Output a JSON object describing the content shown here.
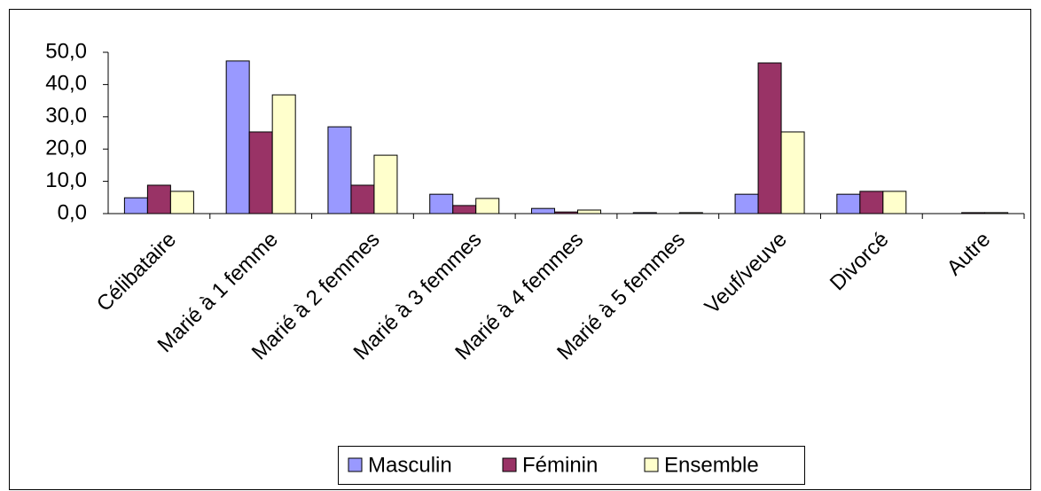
{
  "chart_data": {
    "type": "bar",
    "categories": [
      "Célibataire",
      "Marié à 1 femme",
      "Marié à 2 femmes",
      "Marié à 3 femmes",
      "Marié à 4 femmes",
      "Marié à 5 femmes",
      "Veuf/veuve",
      "Divorcé",
      "Autre"
    ],
    "series": [
      {
        "name": "Masculin",
        "color": "#9999ff",
        "values": [
          4.9,
          47.3,
          26.9,
          6.0,
          1.6,
          0.3,
          6.0,
          6.0,
          0
        ]
      },
      {
        "name": "Féminin",
        "color": "#993366",
        "values": [
          8.8,
          25.3,
          8.8,
          2.5,
          0.5,
          0,
          46.7,
          6.9,
          0.3
        ]
      },
      {
        "name": "Ensemble",
        "color": "#ffffcc",
        "values": [
          6.9,
          36.8,
          18.1,
          4.7,
          1.1,
          0.3,
          25.3,
          6.9,
          0.3
        ]
      }
    ],
    "ylim": [
      0,
      50
    ],
    "yticks": [
      {
        "value": 0,
        "label": "0,0"
      },
      {
        "value": 10,
        "label": "10,0"
      },
      {
        "value": 20,
        "label": "20,0"
      },
      {
        "value": 30,
        "label": "30,0"
      },
      {
        "value": 40,
        "label": "40,0"
      },
      {
        "value": 50,
        "label": "50,0"
      }
    ],
    "legend": "bottom"
  }
}
